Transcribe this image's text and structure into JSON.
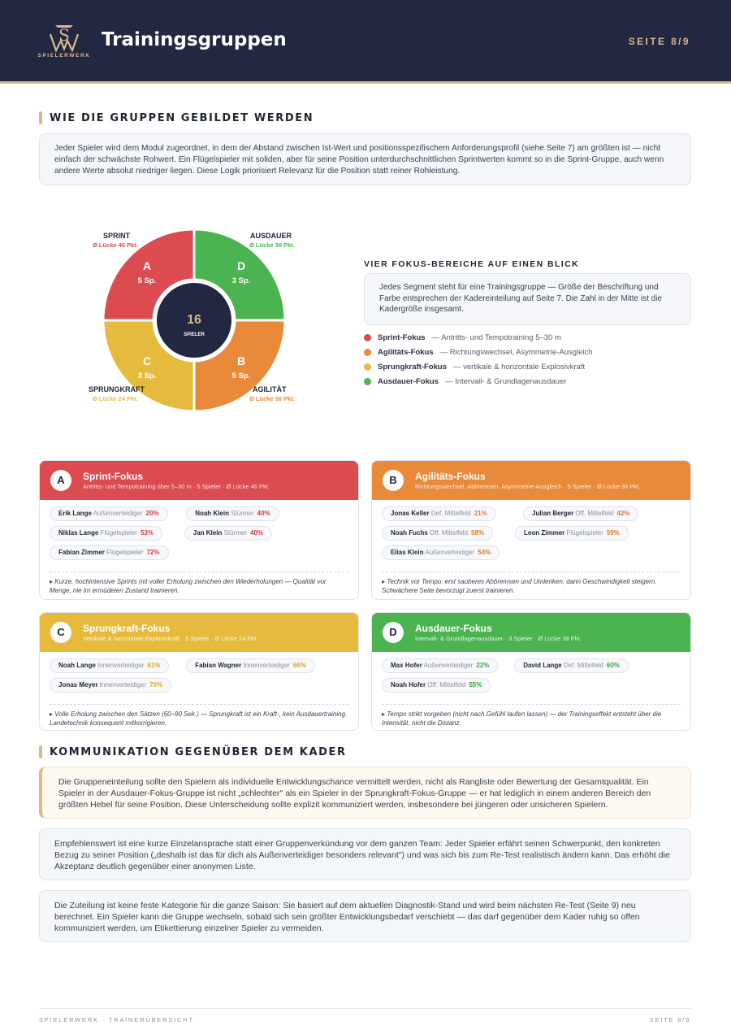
{
  "header": {
    "logo_text": "SPIELERWERK",
    "title": "Trainingsgruppen",
    "page": "SEITE 8/9"
  },
  "section1": {
    "heading": "WIE DIE GRUPPEN GEBILDET WERDEN",
    "text": "Jeder Spieler wird dem Modul zugeordnet, in dem der Abstand zwischen Ist-Wert und positionsspezifischem Anforderungsprofil (siehe Seite 7) am größten ist — nicht einfach der schwächste Rohwert. Ein Flügelspieler mit soliden, aber für seine Position unterdurchschnittlichen Sprintwerten kommt so in die Sprint-Gruppe, auch wenn andere Werte absolut niedriger liegen. Diese Logik priorisiert Relevanz für die Position statt reiner Rohleistung."
  },
  "chart_data": {
    "type": "pie",
    "center_value": "16",
    "center_label": "SPIELER",
    "segments": [
      {
        "letter": "A",
        "count_label": "5 Sp.",
        "label": "SPRINT",
        "gap": "Ø Lücke 46 Pkt.",
        "color": "#dc4b50"
      },
      {
        "letter": "D",
        "count_label": "3 Sp.",
        "label": "AUSDAUER",
        "gap": "Ø Lücke 38 Pkt.",
        "color": "#4bb34f"
      },
      {
        "letter": "B",
        "count_label": "5 Sp.",
        "label": "AGILITÄT",
        "gap": "Ø Lücke 36 Pkt.",
        "color": "#e98a3b"
      },
      {
        "letter": "C",
        "count_label": "3 Sp.",
        "label": "SPRUNGKRAFT",
        "gap": "Ø Lücke 24 Pkt.",
        "color": "#e6bb3d"
      }
    ]
  },
  "legend": {
    "title": "VIER FOKUS-BEREICHE AUF EINEN BLICK",
    "text": "Jedes Segment steht für eine Trainingsgruppe — Größe der Beschriftung und Farbe entsprechen der Kadereinteilung auf Seite 7. Die Zahl in der Mitte ist die Kadergröße insgesamt.",
    "items": [
      {
        "name": "Sprint-Fokus",
        "desc": "— Antritts- und Tempotraining 5–30 m",
        "color": "#dc4b50"
      },
      {
        "name": "Agilitäts-Fokus",
        "desc": "— Richtungswechsel, Asymmetrie-Ausgleich",
        "color": "#e98a3b"
      },
      {
        "name": "Sprungkraft-Fokus",
        "desc": "— vertikale & horizontale Explosivkraft",
        "color": "#e6bb3d"
      },
      {
        "name": "Ausdauer-Fokus",
        "desc": "— Intervall- & Grundlagenausdauer",
        "color": "#4bb34f"
      }
    ]
  },
  "groups": [
    {
      "letter": "A",
      "name": "Sprint-Fokus",
      "color": "#dc4b50",
      "value_color": "#d23b41",
      "sub": "Antritts- und Tempotraining über 5–30 m · 5 Spieler · Ø Lücke 46 Pkt.",
      "players": [
        {
          "name": "Erik Lange",
          "pos": "Außenverteidiger",
          "val": "20%"
        },
        {
          "name": "Noah Klein",
          "pos": "Stürmer",
          "val": "40%"
        },
        {
          "name": "Niklas Lange",
          "pos": "Flügelspieler",
          "val": "53%"
        },
        {
          "name": "Jan Klein",
          "pos": "Stürmer",
          "val": "40%"
        },
        {
          "name": "Fabian Zimmer",
          "pos": "Flügelspieler",
          "val": "72%"
        }
      ],
      "note": "▸ Kurze, hochintensive Sprints mit voller Erholung zwischen den Wiederholungen — Qualität vor Menge, nie im ermüdeten Zustand trainieren."
    },
    {
      "letter": "B",
      "name": "Agilitäts-Fokus",
      "color": "#e98a3b",
      "value_color": "#de7b26",
      "sub": "Richtungswechsel, Abbremsen, Asymmetrie-Ausgleich · 5 Spieler · Ø Lücke 36 Pkt.",
      "players": [
        {
          "name": "Jonas Keller",
          "pos": "Def. Mittelfeld",
          "val": "21%"
        },
        {
          "name": "Julian Berger",
          "pos": "Off. Mittelfeld",
          "val": "42%"
        },
        {
          "name": "Noah Fuchs",
          "pos": "Off. Mittelfeld",
          "val": "58%"
        },
        {
          "name": "Leon Zimmer",
          "pos": "Flügelspieler",
          "val": "59%"
        },
        {
          "name": "Elias Klein",
          "pos": "Außenverteidiger",
          "val": "54%"
        }
      ],
      "note": "▸ Technik vor Tempo: erst sauberes Abbremsen und Umlenken, dann Geschwindigkeit steigern. Schwächere Seite bevorzugt zuerst trainieren."
    },
    {
      "letter": "C",
      "name": "Sprungkraft-Fokus",
      "color": "#e6bb3d",
      "value_color": "#d9a723",
      "sub": "Vertikale & horizontale Explosivkraft · 3 Spieler · Ø Lücke 24 Pkt.",
      "players": [
        {
          "name": "Noah Lange",
          "pos": "Innenverteidiger",
          "val": "61%"
        },
        {
          "name": "Fabian Wagner",
          "pos": "Innenverteidiger",
          "val": "66%"
        },
        {
          "name": "Jonas Meyer",
          "pos": "Innenverteidiger",
          "val": "70%"
        }
      ],
      "note": "▸ Volle Erholung zwischen den Sätzen (60–90 Sek.) — Sprungkraft ist ein Kraft-, kein Ausdauertraining. Landetechnik konsequent mitkorrigieren."
    },
    {
      "letter": "D",
      "name": "Ausdauer-Fokus",
      "color": "#4bb34f",
      "value_color": "#3aa13f",
      "sub": "Intervall- & Grundlagenausdauer · 3 Spieler · Ø Lücke 38 Pkt.",
      "players": [
        {
          "name": "Max Hofer",
          "pos": "Außenverteidiger",
          "val": "22%"
        },
        {
          "name": "David Lange",
          "pos": "Def. Mittelfeld",
          "val": "60%"
        },
        {
          "name": "Noah Hofer",
          "pos": "Off. Mittelfeld",
          "val": "55%"
        }
      ],
      "note": "▸ Tempo strikt vorgeben (nicht nach Gefühl laufen lassen) — der Trainingseffekt entsteht über die Intensität, nicht die Distanz."
    }
  ],
  "section2": {
    "heading": "KOMMUNIKATION GEGENÜBER DEM KADER",
    "paragraphs": [
      "Die Gruppeneinteilung sollte den Spielern als individuelle Entwicklungschance vermittelt werden, nicht als Rangliste oder Bewertung der Gesamtqualität. Ein Spieler in der Ausdauer-Fokus-Gruppe ist nicht „schlechter\" als ein Spieler in der Sprungkraft-Fokus-Gruppe — er hat lediglich in einem anderen Bereich den größten Hebel für seine Position. Diese Unterscheidung sollte explizit kommuniziert werden, insbesondere bei jüngeren oder unsicheren Spielern.",
      "Empfehlenswert ist eine kurze Einzelansprache statt einer Gruppenverkündung vor dem ganzen Team: Jeder Spieler erfährt seinen Schwerpunkt, den konkreten Bezug zu seiner Position („deshalb ist das für dich als Außenverteidiger besonders relevant\") und was sich bis zum Re-Test realistisch ändern kann. Das erhöht die Akzeptanz deutlich gegenüber einer anonymen Liste.",
      "Die Zuteilung ist keine feste Kategorie für die ganze Saison: Sie basiert auf dem aktuellen Diagnostik-Stand und wird beim nächsten Re-Test (Seite 9) neu berechnet. Ein Spieler kann die Gruppe wechseln, sobald sich sein größter Entwicklungsbedarf verschiebt — das darf gegenüber dem Kader ruhig so offen kommuniziert werden, um Etikettierung einzelner Spieler zu vermeiden."
    ]
  },
  "footer": {
    "left": "SPIELERWERK · TRAINERÜBERSICHT",
    "right": "SEITE 8/9"
  }
}
